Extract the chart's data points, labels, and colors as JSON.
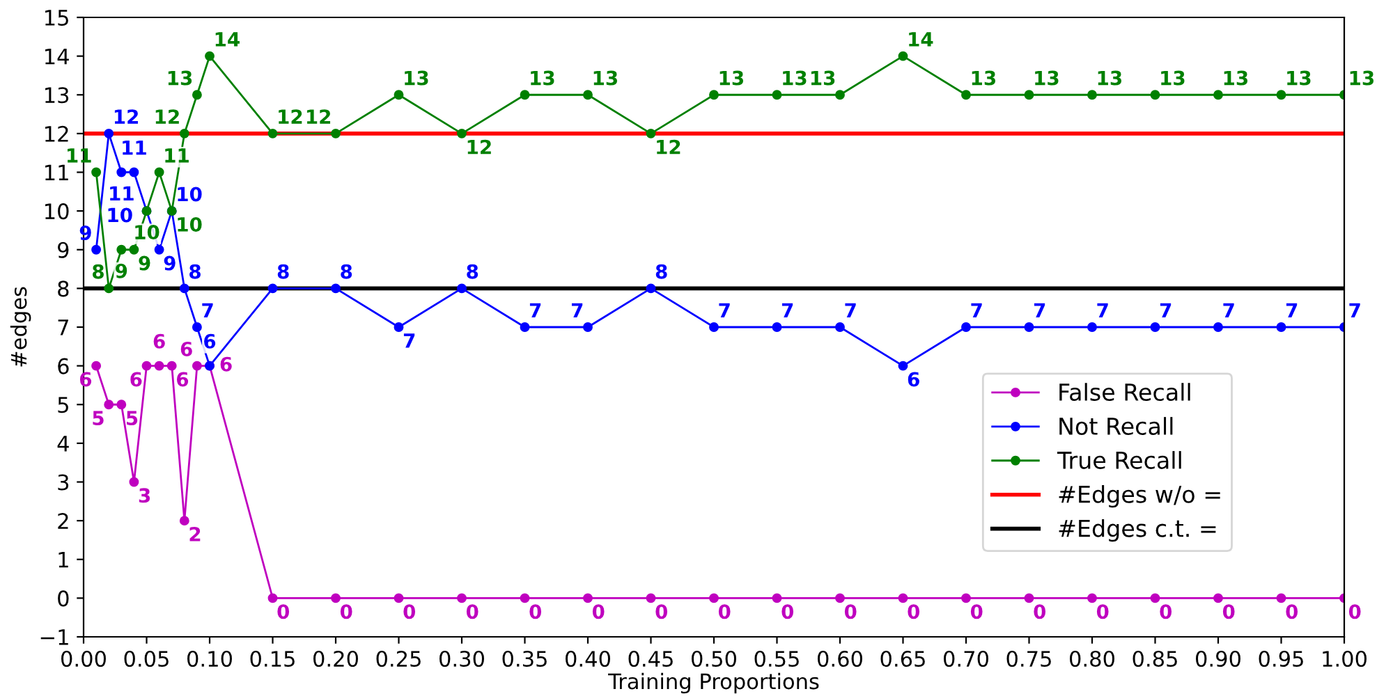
{
  "chart_data": {
    "type": "line",
    "xlabel": "Training Proportions",
    "ylabel": "#edges",
    "x": [
      0.01,
      0.02,
      0.03,
      0.04,
      0.05,
      0.06,
      0.07,
      0.08,
      0.09,
      0.1,
      0.15,
      0.2,
      0.25,
      0.3,
      0.35,
      0.4,
      0.45,
      0.5,
      0.55,
      0.6,
      0.65,
      0.7,
      0.75,
      0.8,
      0.85,
      0.9,
      0.95,
      1.0
    ],
    "series": [
      {
        "name": "False Recall",
        "color": "#bf00bf",
        "values": [
          6,
          5,
          5,
          3,
          6,
          6,
          6,
          2,
          6,
          6,
          0,
          0,
          0,
          0,
          0,
          0,
          0,
          0,
          0,
          0,
          0,
          0,
          0,
          0,
          0,
          0,
          0,
          0
        ]
      },
      {
        "name": "Not Recall",
        "color": "#0000ff",
        "values": [
          9,
          12,
          11,
          11,
          10,
          9,
          10,
          8,
          7,
          6,
          8,
          8,
          7,
          8,
          7,
          7,
          8,
          7,
          7,
          7,
          6,
          7,
          7,
          7,
          7,
          7,
          7,
          7
        ]
      },
      {
        "name": "True Recall",
        "color": "#008000",
        "values": [
          11,
          8,
          9,
          9,
          10,
          11,
          10,
          12,
          13,
          14,
          12,
          12,
          13,
          12,
          13,
          13,
          12,
          13,
          13,
          13,
          14,
          13,
          13,
          13,
          13,
          13,
          13,
          13
        ]
      }
    ],
    "ref_lines": [
      {
        "axis": "y",
        "value": 12,
        "label": "#Edges w/o =",
        "color": "#ff0000"
      },
      {
        "axis": "y",
        "value": 8,
        "label": "#Edges c.t. =",
        "color": "#000000"
      }
    ],
    "data_labels": true,
    "marker": "circle",
    "line_style": "solid",
    "legend": "bottom right",
    "grid": false,
    "xlim": [
      0,
      1
    ],
    "ylim": [
      -1,
      15
    ],
    "xticks": [
      {
        "value": 0,
        "label": "0.00"
      },
      {
        "value": 0.05,
        "label": "0.05"
      },
      {
        "value": 0.1,
        "label": "0.10"
      },
      {
        "value": 0.15,
        "label": "0.15"
      },
      {
        "value": 0.2,
        "label": "0.20"
      },
      {
        "value": 0.25,
        "label": "0.25"
      },
      {
        "value": 0.3,
        "label": "0.30"
      },
      {
        "value": 0.35,
        "label": "0.35"
      },
      {
        "value": 0.4,
        "label": "0.40"
      },
      {
        "value": 0.45,
        "label": "0.45"
      },
      {
        "value": 0.5,
        "label": "0.50"
      },
      {
        "value": 0.55,
        "label": "0.55"
      },
      {
        "value": 0.6,
        "label": "0.60"
      },
      {
        "value": 0.65,
        "label": "0.65"
      },
      {
        "value": 0.7,
        "label": "0.70"
      },
      {
        "value": 0.75,
        "label": "0.75"
      },
      {
        "value": 0.8,
        "label": "0.80"
      },
      {
        "value": 0.85,
        "label": "0.85"
      },
      {
        "value": 0.9,
        "label": "0.90"
      },
      {
        "value": 0.95,
        "label": "0.95"
      },
      {
        "value": 1,
        "label": "1.00"
      }
    ],
    "yticks": [
      {
        "value": -1,
        "label": "−1"
      },
      0,
      1,
      2,
      3,
      4,
      5,
      6,
      7,
      8,
      9,
      10,
      11,
      12,
      13,
      14,
      15
    ]
  }
}
